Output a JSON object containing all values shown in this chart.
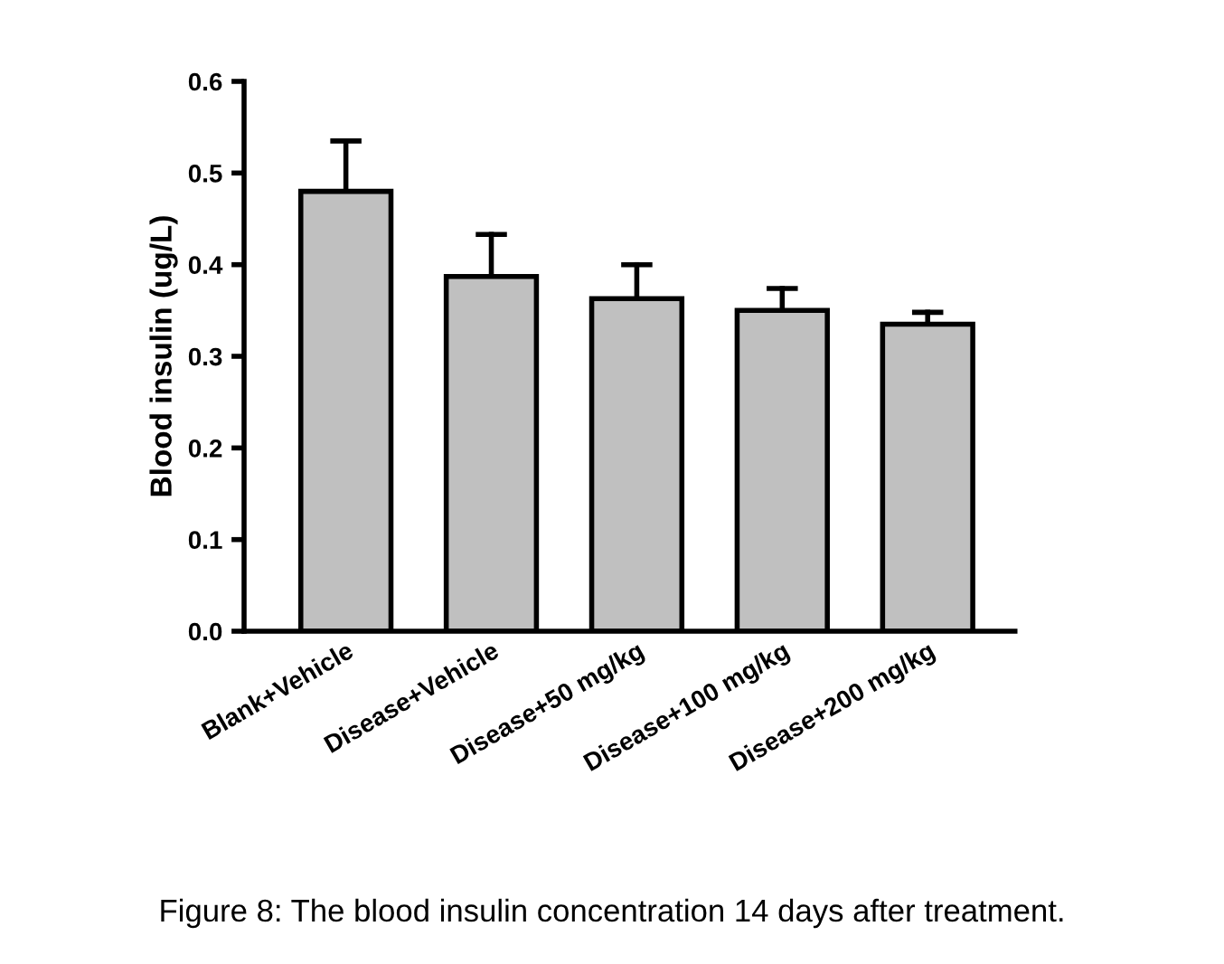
{
  "chart_data": {
    "type": "bar",
    "ylabel": "Blood insulin (ug/L)",
    "categories": [
      "Blank+Vehicle",
      "Disease+Vehicle",
      "Disease+50 mg/kg",
      "Disease+100 mg/kg",
      "Disease+200 mg/kg"
    ],
    "values": [
      0.48,
      0.387,
      0.363,
      0.35,
      0.335
    ],
    "errors": [
      [
        0.48,
        0.535
      ],
      [
        0.387,
        0.433
      ],
      [
        0.363,
        0.4
      ],
      [
        0.35,
        0.374
      ],
      [
        0.335,
        0.348
      ]
    ],
    "color": "#c0c0c0",
    "ylim": [
      0,
      0.6
    ],
    "yticks": [
      {
        "value": 0,
        "label": "0.0"
      },
      0.1,
      0.2,
      0.3,
      0.4,
      0.5,
      0.6
    ],
    "grid": false,
    "legend": false,
    "annotations": [
      "Figure 8: The blood insulin concentration 14 days after treatment."
    ]
  }
}
